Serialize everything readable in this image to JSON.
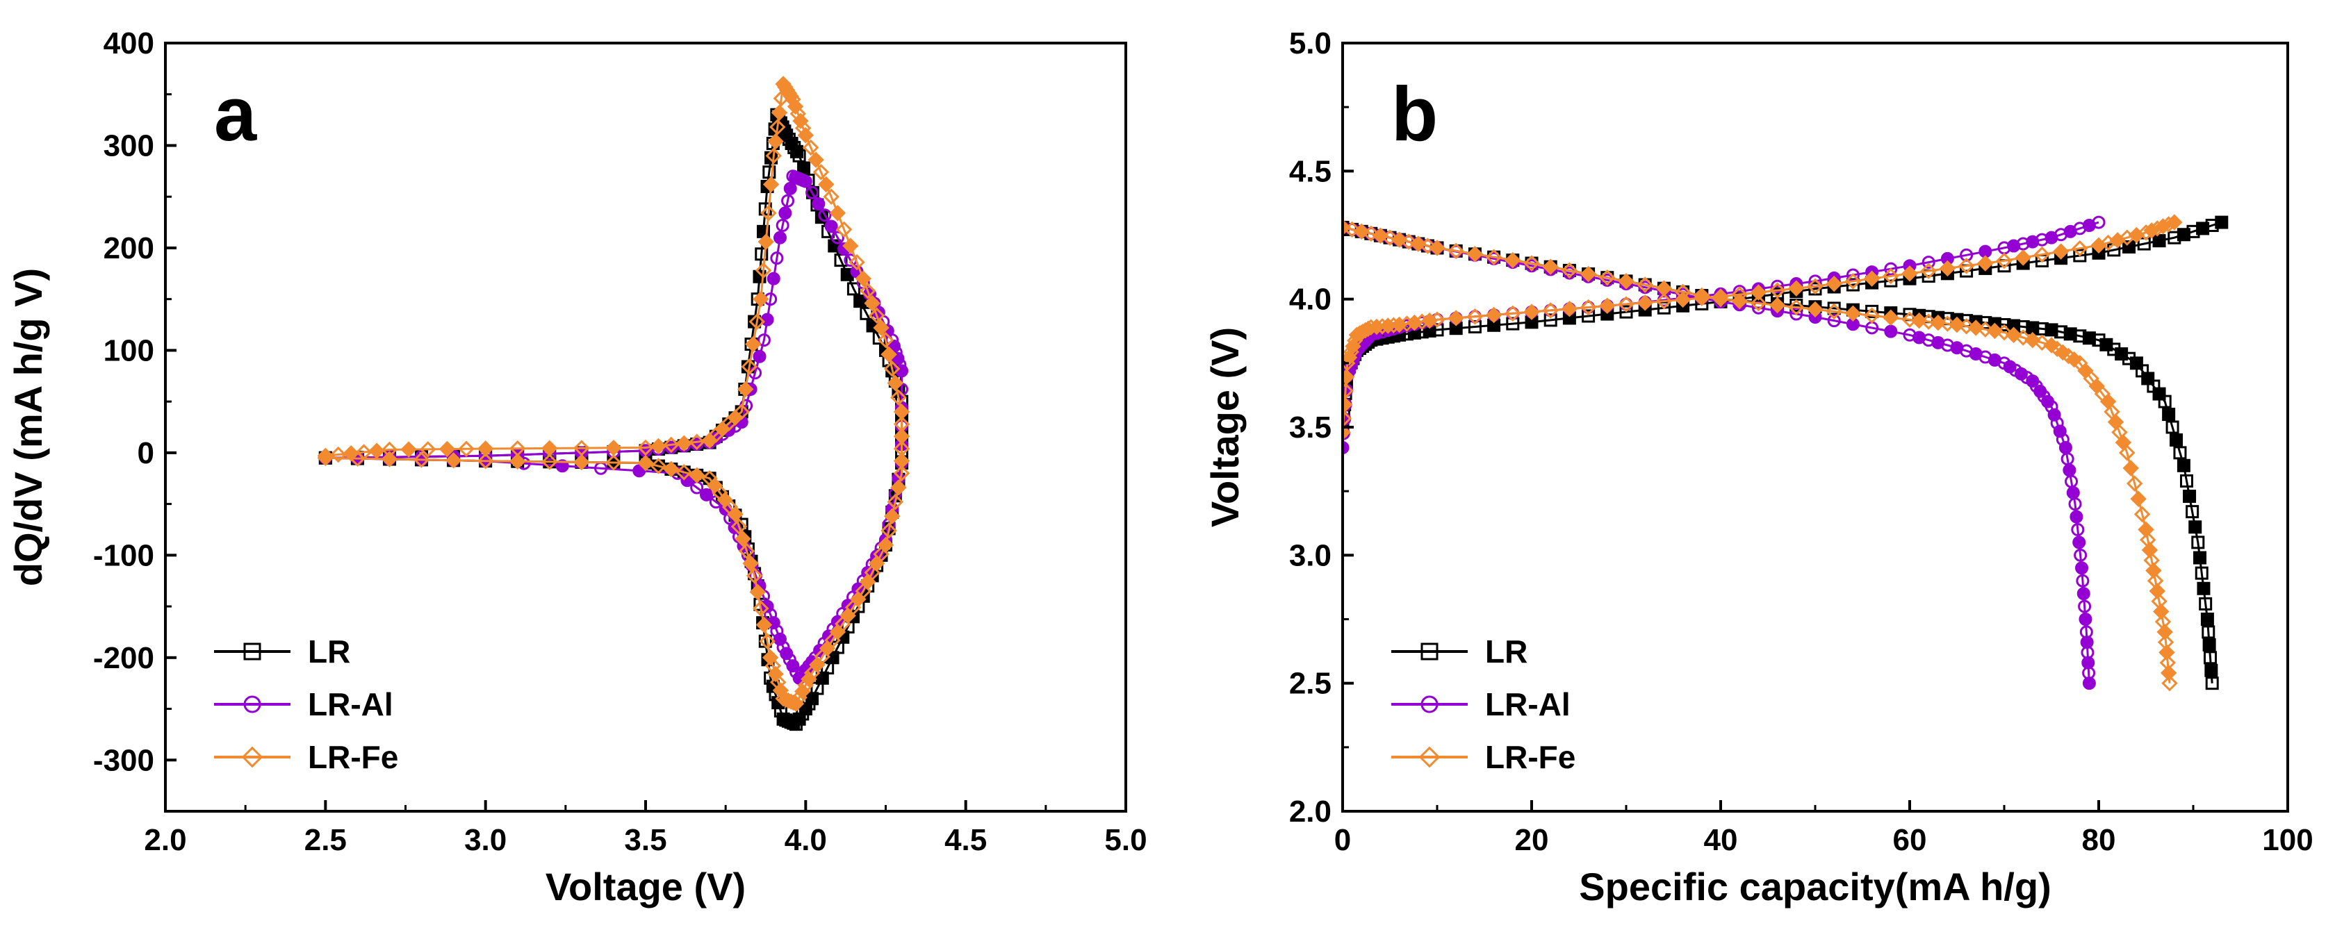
{
  "colors": {
    "LR": "#000000",
    "LR-Al": "#9400d3",
    "LR-Fe": "#f28a30",
    "axis": "#000000",
    "background": "#ffffff"
  },
  "chart_data": [
    {
      "type": "line",
      "panel_label": "a",
      "title": "",
      "xlabel": "Voltage (V)",
      "ylabel": "dQ/dV (mA h/g V)",
      "xlim": [
        2.0,
        5.0
      ],
      "ylim": [
        -350,
        400
      ],
      "xticks": [
        "2.0",
        "2.5",
        "3.0",
        "3.5",
        "4.0",
        "4.5",
        "5.0"
      ],
      "xtick_values": [
        2.0,
        2.5,
        3.0,
        3.5,
        4.0,
        4.5,
        5.0
      ],
      "yticks": [
        "-300",
        "-200",
        "-100",
        "0",
        "100",
        "200",
        "300",
        "400"
      ],
      "ytick_values": [
        -300,
        -200,
        -100,
        0,
        100,
        200,
        300,
        400
      ],
      "grid": false,
      "legend_position": "bottom-left",
      "series": [
        {
          "name": "LR",
          "marker": "square",
          "x": [
            2.5,
            3.0,
            3.5,
            3.7,
            3.8,
            3.85,
            3.88,
            3.91,
            3.94,
            3.98,
            4.05,
            4.15,
            4.25,
            4.3,
            4.3,
            4.25,
            4.18,
            4.1,
            4.02,
            3.97,
            3.93,
            3.89,
            3.85,
            3.8,
            3.7,
            3.5,
            3.0,
            2.5
          ],
          "y": [
            -5,
            -3,
            2,
            10,
            40,
            150,
            260,
            330,
            310,
            290,
            230,
            160,
            100,
            50,
            -10,
            -90,
            -140,
            -190,
            -240,
            -265,
            -260,
            -220,
            -130,
            -70,
            -25,
            -10,
            -8,
            -5
          ]
        },
        {
          "name": "LR-Al",
          "marker": "circle",
          "x": [
            2.5,
            3.0,
            3.5,
            3.7,
            3.8,
            3.87,
            3.92,
            3.96,
            4.0,
            4.1,
            4.2,
            4.27,
            4.3,
            4.3,
            4.25,
            4.18,
            4.1,
            4.03,
            3.98,
            3.93,
            3.88,
            3.82,
            3.75,
            3.6,
            3.0,
            2.5
          ],
          "y": [
            -5,
            -3,
            2,
            10,
            30,
            110,
            210,
            270,
            265,
            210,
            155,
            110,
            80,
            -10,
            -85,
            -125,
            -165,
            -200,
            -220,
            -190,
            -150,
            -100,
            -55,
            -20,
            -8,
            -5
          ]
        },
        {
          "name": "LR-Fe",
          "marker": "diamond",
          "x": [
            2.5,
            2.7,
            3.0,
            3.5,
            3.7,
            3.8,
            3.86,
            3.9,
            3.93,
            3.96,
            4.0,
            4.08,
            4.18,
            4.25,
            4.3,
            4.3,
            4.25,
            4.18,
            4.1,
            4.02,
            3.97,
            3.93,
            3.89,
            3.84,
            3.78,
            3.7,
            3.5,
            3.0,
            2.5
          ],
          "y": [
            -3,
            3,
            4,
            5,
            12,
            40,
            150,
            290,
            360,
            345,
            310,
            250,
            170,
            110,
            40,
            -20,
            -90,
            -135,
            -175,
            -215,
            -245,
            -240,
            -200,
            -120,
            -60,
            -25,
            -10,
            -8,
            -5
          ]
        }
      ]
    },
    {
      "type": "line",
      "panel_label": "b",
      "title": "",
      "xlabel": "Specific capacity(mA h/g)",
      "ylabel": "Voltage (V)",
      "xlim": [
        0,
        100
      ],
      "ylim": [
        2.0,
        5.0
      ],
      "xticks": [
        "0",
        "20",
        "40",
        "60",
        "80",
        "100"
      ],
      "xtick_values": [
        0,
        20,
        40,
        60,
        80,
        100
      ],
      "yticks": [
        "2.0",
        "2.5",
        "3.0",
        "3.5",
        "4.0",
        "4.5",
        "5.0"
      ],
      "ytick_values": [
        2.0,
        2.5,
        3.0,
        3.5,
        4.0,
        4.5,
        5.0
      ],
      "grid": false,
      "legend_position": "bottom-left",
      "series": [
        {
          "name": "LR",
          "marker": "square",
          "charge": {
            "x": [
              0,
              0.5,
              1.5,
              3,
              6,
              10,
              20,
              30,
              40,
              50,
              60,
              70,
              80,
              88,
              93
            ],
            "y": [
              3.5,
              3.72,
              3.8,
              3.84,
              3.86,
              3.88,
              3.91,
              3.95,
              3.99,
              4.04,
              4.08,
              4.13,
              4.18,
              4.24,
              4.3
            ]
          },
          "discharge": {
            "x": [
              0,
              5,
              10,
              20,
              30,
              40,
              50,
              60,
              65,
              70,
              75,
              80,
              84,
              87,
              89,
              90.5,
              91.5,
              92
            ],
            "y": [
              4.28,
              4.24,
              4.2,
              4.14,
              4.07,
              4.0,
              3.97,
              3.94,
              3.92,
              3.9,
              3.88,
              3.84,
              3.75,
              3.6,
              3.35,
              3.05,
              2.75,
              2.5
            ]
          }
        },
        {
          "name": "LR-Al",
          "marker": "circle",
          "charge": {
            "x": [
              0,
              0.5,
              1.5,
              3,
              6,
              10,
              20,
              30,
              40,
              50,
              60,
              70,
              75,
              80
            ],
            "y": [
              3.42,
              3.7,
              3.8,
              3.86,
              3.89,
              3.92,
              3.95,
              3.98,
              4.02,
              4.07,
              4.13,
              4.2,
              4.24,
              4.3
            ]
          },
          "discharge": {
            "x": [
              0,
              5,
              10,
              20,
              30,
              40,
              50,
              60,
              65,
              70,
              73,
              75,
              76.5,
              77.5,
              78.2,
              78.7,
              79
            ],
            "y": [
              4.28,
              4.24,
              4.2,
              4.13,
              4.06,
              3.99,
              3.93,
              3.86,
              3.81,
              3.75,
              3.68,
              3.58,
              3.42,
              3.2,
              2.95,
              2.7,
              2.5
            ]
          }
        },
        {
          "name": "LR-Fe",
          "marker": "diamond",
          "charge": {
            "x": [
              0,
              0.5,
              1.5,
              3,
              6,
              10,
              20,
              30,
              40,
              50,
              60,
              70,
              80,
              85,
              88
            ],
            "y": [
              3.48,
              3.75,
              3.86,
              3.89,
              3.9,
              3.92,
              3.95,
              3.98,
              4.01,
              4.05,
              4.1,
              4.15,
              4.21,
              4.26,
              4.3
            ]
          },
          "discharge": {
            "x": [
              0,
              5,
              10,
              20,
              30,
              40,
              50,
              60,
              65,
              70,
              75,
              78,
              81,
              83,
              85,
              86,
              87,
              87.5
            ],
            "y": [
              4.28,
              4.24,
              4.2,
              4.14,
              4.07,
              4.0,
              3.96,
              3.92,
              3.9,
              3.87,
              3.82,
              3.75,
              3.6,
              3.4,
              3.1,
              2.9,
              2.7,
              2.5
            ]
          }
        }
      ]
    }
  ]
}
